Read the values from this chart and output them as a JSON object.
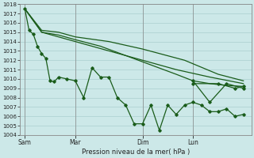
{
  "xlabel": "Pression niveau de la mer( hPa )",
  "ylim": [
    1004,
    1018
  ],
  "yticks": [
    1004,
    1005,
    1006,
    1007,
    1008,
    1009,
    1010,
    1011,
    1012,
    1013,
    1014,
    1015,
    1016,
    1017,
    1018
  ],
  "bg_color": "#cce8e8",
  "grid_color": "#aacfcf",
  "line_color": "#1a5c1a",
  "xtick_labels": [
    "Sam",
    "Mar",
    "Dim",
    "Lun"
  ],
  "xtick_positions": [
    0,
    3,
    7,
    10
  ],
  "xlim": [
    -0.3,
    13.5
  ],
  "series1": {
    "x": [
      0,
      0.25,
      0.5,
      0.75,
      1.0,
      1.25,
      1.5,
      1.75,
      2.0,
      2.5,
      3.0,
      3.5,
      4.0,
      4.5,
      5.0,
      5.5,
      6.0,
      6.5,
      7.0,
      7.5,
      8.0,
      8.5,
      9.0,
      9.5,
      10.0,
      10.5,
      11.0,
      11.5,
      12.0,
      12.5,
      13.0
    ],
    "y": [
      1017.5,
      1015.2,
      1014.8,
      1013.5,
      1012.7,
      1012.2,
      1009.8,
      1009.7,
      1010.2,
      1010.0,
      1009.8,
      1008.0,
      1011.2,
      1010.2,
      1010.2,
      1008.0,
      1007.2,
      1005.2,
      1005.2,
      1007.2,
      1004.5,
      1007.2,
      1006.2,
      1007.2,
      1007.5,
      1007.2,
      1006.5,
      1006.5,
      1006.8,
      1006.0,
      1006.2
    ]
  },
  "series1b": {
    "x": [
      0,
      0.25,
      0.5,
      0.75,
      1.0,
      1.25,
      1.5,
      1.75,
      2.0,
      2.5,
      3.0,
      3.5,
      4.0,
      4.5,
      5.0,
      5.5,
      6.0,
      6.5,
      7.0,
      7.5,
      8.0,
      8.5,
      9.0,
      9.5,
      10.0,
      10.5,
      11.0,
      11.5,
      12.0,
      12.5,
      13.0
    ],
    "y": [
      1017.5,
      1015.2,
      1014.8,
      1013.5,
      1012.7,
      1012.2,
      1009.8,
      1009.7,
      1010.2,
      1010.0,
      1009.8,
      1008.0,
      1011.2,
      1010.2,
      1010.2,
      1008.0,
      1007.2,
      1005.2,
      1005.2,
      1007.2,
      1004.5,
      1007.2,
      1006.2,
      1007.2,
      1007.5,
      1007.2,
      1006.5,
      1006.5,
      1006.8,
      1006.0,
      1006.2
    ]
  },
  "series2": {
    "x": [
      0,
      1.0,
      2.0,
      3.0,
      4.5,
      6.0,
      7.5,
      9.0,
      10.0,
      11.0,
      12.0,
      13.0
    ],
    "y": [
      1017.5,
      1015.0,
      1014.7,
      1014.2,
      1013.5,
      1012.5,
      1011.5,
      1010.5,
      1009.8,
      1009.5,
      1009.3,
      1009.2
    ]
  },
  "series3": {
    "x": [
      0,
      1.0,
      2.0,
      3.0,
      5.0,
      7.0,
      9.0,
      11.0,
      13.0
    ],
    "y": [
      1017.5,
      1015.0,
      1014.5,
      1014.0,
      1013.0,
      1012.0,
      1011.0,
      1010.2,
      1009.5
    ]
  },
  "series4": {
    "x": [
      0,
      1.0,
      2.0,
      3.0,
      5.0,
      7.0,
      9.5,
      11.5,
      13.0
    ],
    "y": [
      1017.5,
      1015.2,
      1015.0,
      1014.5,
      1014.0,
      1013.2,
      1012.0,
      1010.5,
      1009.8
    ]
  },
  "series_right1": {
    "x": [
      10.0,
      11.5,
      12.5,
      13.0
    ],
    "y": [
      1009.5,
      1009.5,
      1009.0,
      1009.2
    ]
  },
  "series_right2": {
    "x": [
      10.0,
      11.0,
      12.0,
      13.0
    ],
    "y": [
      1009.8,
      1007.5,
      1009.5,
      1009.0
    ]
  }
}
